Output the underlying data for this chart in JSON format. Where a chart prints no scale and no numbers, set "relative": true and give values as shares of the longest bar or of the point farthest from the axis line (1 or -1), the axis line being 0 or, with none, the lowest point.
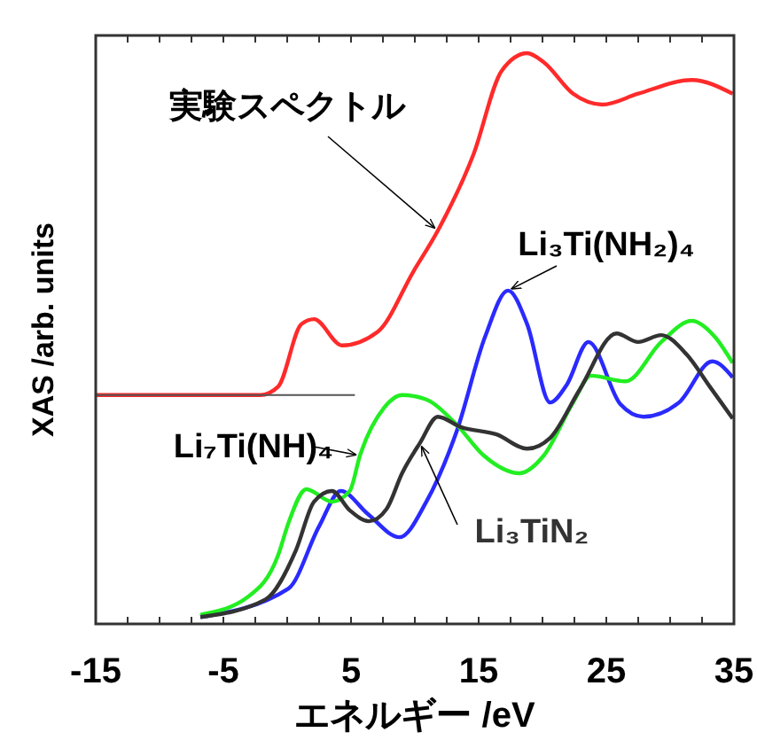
{
  "chart_data": {
    "type": "line",
    "relative": true,
    "xlabel": "エネルギー /eV",
    "ylabel": "XAS /arb. units",
    "xlim": [
      -15,
      35
    ],
    "xticks": [
      -15,
      {
        "value": -12.5,
        "label": null
      },
      {
        "value": -10,
        "label": null
      },
      {
        "value": -7.5,
        "label": null
      },
      -5,
      {
        "value": -2.5,
        "label": null
      },
      {
        "value": 0,
        "label": null
      },
      {
        "value": 2.5,
        "label": null
      },
      5,
      {
        "value": 7.5,
        "label": null
      },
      {
        "value": 10,
        "label": null
      },
      {
        "value": 12.5,
        "label": null
      },
      15,
      {
        "value": 17.5,
        "label": null
      },
      {
        "value": 20,
        "label": null
      },
      {
        "value": 22.5,
        "label": null
      },
      25,
      {
        "value": 27.5,
        "label": null
      },
      {
        "value": 30,
        "label": null
      },
      {
        "value": 32.5,
        "label": null
      },
      35
    ],
    "grid": false,
    "legend": false,
    "marker": "none",
    "line_style": "solid",
    "series": [
      {
        "name": "実験スペクトル",
        "color": "#ff2a2a",
        "x": [
          -15,
          -2.1,
          -0.7,
          1.1,
          2.1,
          4.3,
          7.1,
          9.9,
          11.8,
          14.6,
          16.8,
          18.8,
          20.1,
          22.4,
          24.7,
          27.5,
          31.7,
          34.9
        ],
        "values": [
          0.401,
          0.401,
          0.416,
          0.525,
          0.534,
          0.488,
          0.512,
          0.618,
          0.689,
          0.823,
          0.969,
          1.0,
          0.984,
          0.929,
          0.91,
          0.929,
          0.953,
          0.929
        ]
      },
      {
        "color": "#555555",
        "x": [
          -15,
          5.3
        ],
        "values": [
          0.401,
          0.401
        ]
      },
      {
        "name": "Li₃Ti(NH₂)₄",
        "color": "#2a2aff",
        "x": [
          -6.8,
          0.1,
          2.5,
          4.2,
          6.3,
          8.8,
          10.9,
          13.3,
          15.5,
          17.3,
          18.8,
          20.6,
          21.9,
          23.6,
          26.1,
          27.9,
          30.7,
          33.3,
          34.9
        ],
        "values": [
          0.012,
          0.062,
          0.171,
          0.233,
          0.193,
          0.152,
          0.214,
          0.339,
          0.503,
          0.584,
          0.525,
          0.388,
          0.419,
          0.494,
          0.385,
          0.363,
          0.388,
          0.46,
          0.432
        ]
      },
      {
        "name": "Li₇Ti(NH)₄",
        "color": "#22ee22",
        "x": [
          -6.8,
          -3.1,
          -0.7,
          0.1,
          1.5,
          3.5,
          4.9,
          5.7,
          7.6,
          9.0,
          10.8,
          13.2,
          15.4,
          18.2,
          20.1,
          22.4,
          23.8,
          26.5,
          29.3,
          31.7,
          33.5,
          34.9
        ],
        "values": [
          0.016,
          0.047,
          0.121,
          0.177,
          0.236,
          0.214,
          0.233,
          0.295,
          0.379,
          0.401,
          0.394,
          0.351,
          0.295,
          0.264,
          0.295,
          0.388,
          0.435,
          0.425,
          0.494,
          0.531,
          0.503,
          0.457
        ]
      },
      {
        "name": "Li₃TiN₂",
        "color": "#333333",
        "x": [
          -6.8,
          -1.7,
          0.7,
          2.1,
          3.5,
          4.9,
          6.4,
          7.8,
          9.0,
          10.4,
          11.8,
          13.6,
          16.4,
          18.8,
          20.6,
          22.9,
          25.8,
          27.5,
          29.3,
          31.3,
          33.1,
          34.9
        ],
        "values": [
          0.012,
          0.043,
          0.13,
          0.214,
          0.233,
          0.199,
          0.18,
          0.202,
          0.264,
          0.317,
          0.363,
          0.345,
          0.332,
          0.307,
          0.326,
          0.41,
          0.509,
          0.494,
          0.506,
          0.472,
          0.416,
          0.36
        ]
      }
    ]
  }
}
